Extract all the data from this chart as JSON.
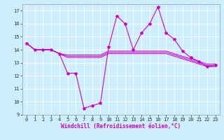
{
  "xlabel": "Windchill (Refroidissement éolien,°C)",
  "background_color": "#cceeff",
  "grid_color": "#ffffff",
  "line_color": "#cc00cc",
  "ylim": [
    9,
    17.5
  ],
  "xlim": [
    -0.5,
    23.5
  ],
  "yticks": [
    9,
    10,
    11,
    12,
    13,
    14,
    15,
    16,
    17
  ],
  "xticks": [
    0,
    1,
    2,
    3,
    4,
    5,
    6,
    7,
    8,
    9,
    10,
    11,
    12,
    13,
    14,
    15,
    16,
    17,
    18,
    19,
    20,
    21,
    22,
    23
  ],
  "main_x": [
    0,
    1,
    2,
    3,
    4,
    5,
    6,
    7,
    8,
    9,
    10,
    11,
    12,
    13,
    14,
    15,
    16,
    17,
    18,
    19,
    20,
    21,
    22,
    23
  ],
  "main_y": [
    14.5,
    14.0,
    14.0,
    14.0,
    13.7,
    12.2,
    12.2,
    9.5,
    9.7,
    9.9,
    14.2,
    16.6,
    16.0,
    14.0,
    15.3,
    16.0,
    17.3,
    15.3,
    14.8,
    13.9,
    13.4,
    13.1,
    12.7,
    12.8
  ],
  "line2_x": [
    0,
    1,
    2,
    3,
    4,
    5,
    6,
    7,
    8,
    9,
    10,
    11,
    12,
    13,
    14,
    15,
    16,
    17,
    18,
    19,
    20,
    21,
    22,
    23
  ],
  "line2_y": [
    14.5,
    14.0,
    14.0,
    14.0,
    13.7,
    13.5,
    13.5,
    13.5,
    13.5,
    13.5,
    13.8,
    13.8,
    13.8,
    13.8,
    13.8,
    13.8,
    13.8,
    13.8,
    13.6,
    13.4,
    13.2,
    13.0,
    12.8,
    12.8
  ],
  "line3_x": [
    0,
    1,
    2,
    3,
    4,
    5,
    6,
    7,
    8,
    9,
    10,
    11,
    12,
    13,
    14,
    15,
    16,
    17,
    18,
    19,
    20,
    21,
    22,
    23
  ],
  "line3_y": [
    14.5,
    14.0,
    14.0,
    14.0,
    13.7,
    13.6,
    13.6,
    13.6,
    13.6,
    13.6,
    13.9,
    13.9,
    13.9,
    13.9,
    13.9,
    13.9,
    13.9,
    13.9,
    13.7,
    13.5,
    13.3,
    13.1,
    12.9,
    12.9
  ],
  "line4_x": [
    0,
    1,
    2,
    3,
    4,
    5,
    6,
    7,
    8,
    9,
    10,
    11,
    12,
    13,
    14,
    15,
    16,
    17,
    18,
    19,
    20,
    21,
    22,
    23
  ],
  "line4_y": [
    14.5,
    14.0,
    14.0,
    14.0,
    13.7,
    13.4,
    13.4,
    13.4,
    13.4,
    13.4,
    13.7,
    13.7,
    13.7,
    13.7,
    13.7,
    13.7,
    13.7,
    13.7,
    13.5,
    13.3,
    13.1,
    12.9,
    12.7,
    12.7
  ],
  "tick_fontsize": 5,
  "xlabel_fontsize": 5.5,
  "marker_size": 3
}
